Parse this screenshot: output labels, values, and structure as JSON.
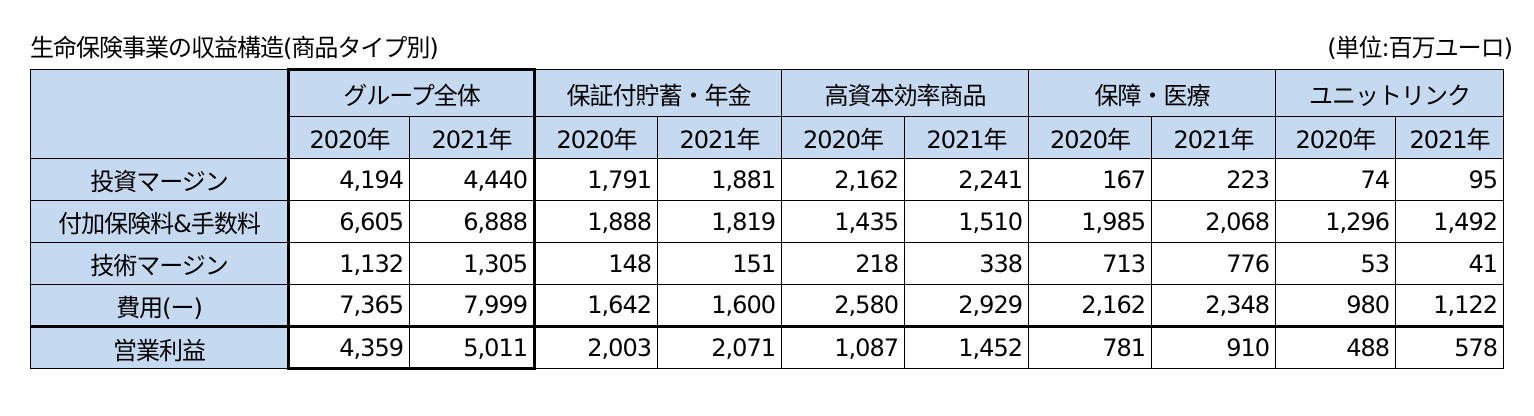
{
  "title": "生命保険事業の収益構造(商品タイプ別)",
  "unit": "(単位:百万ユーロ)",
  "groups": [
    "グループ全体",
    "保証付貯蓄・年金",
    "高資本効率商品",
    "保障・医療",
    "ユニットリンク"
  ],
  "years": [
    "2020年",
    "2021年"
  ],
  "rows": [
    {
      "label": "投資マージン",
      "values": [
        "4,194",
        "4,440",
        "1,791",
        "1,881",
        "2,162",
        "2,241",
        "167",
        "223",
        "74",
        "95"
      ]
    },
    {
      "label": "付加保険料&手数料",
      "values": [
        "6,605",
        "6,888",
        "1,888",
        "1,819",
        "1,435",
        "1,510",
        "1,985",
        "2,068",
        "1,296",
        "1,492"
      ]
    },
    {
      "label": "技術マージン",
      "values": [
        "1,132",
        "1,305",
        "148",
        "151",
        "218",
        "338",
        "713",
        "776",
        "53",
        "41"
      ]
    },
    {
      "label": "費用(ー)",
      "values": [
        "7,365",
        "7,999",
        "1,642",
        "1,600",
        "2,580",
        "2,929",
        "2,162",
        "2,348",
        "980",
        "1,122"
      ]
    },
    {
      "label": "営業利益",
      "values": [
        "4,359",
        "5,011",
        "2,003",
        "2,071",
        "1,087",
        "1,452",
        "781",
        "910",
        "488",
        "578"
      ]
    }
  ],
  "colors": {
    "header_bg": "#c5d9f1",
    "border": "#000000"
  }
}
